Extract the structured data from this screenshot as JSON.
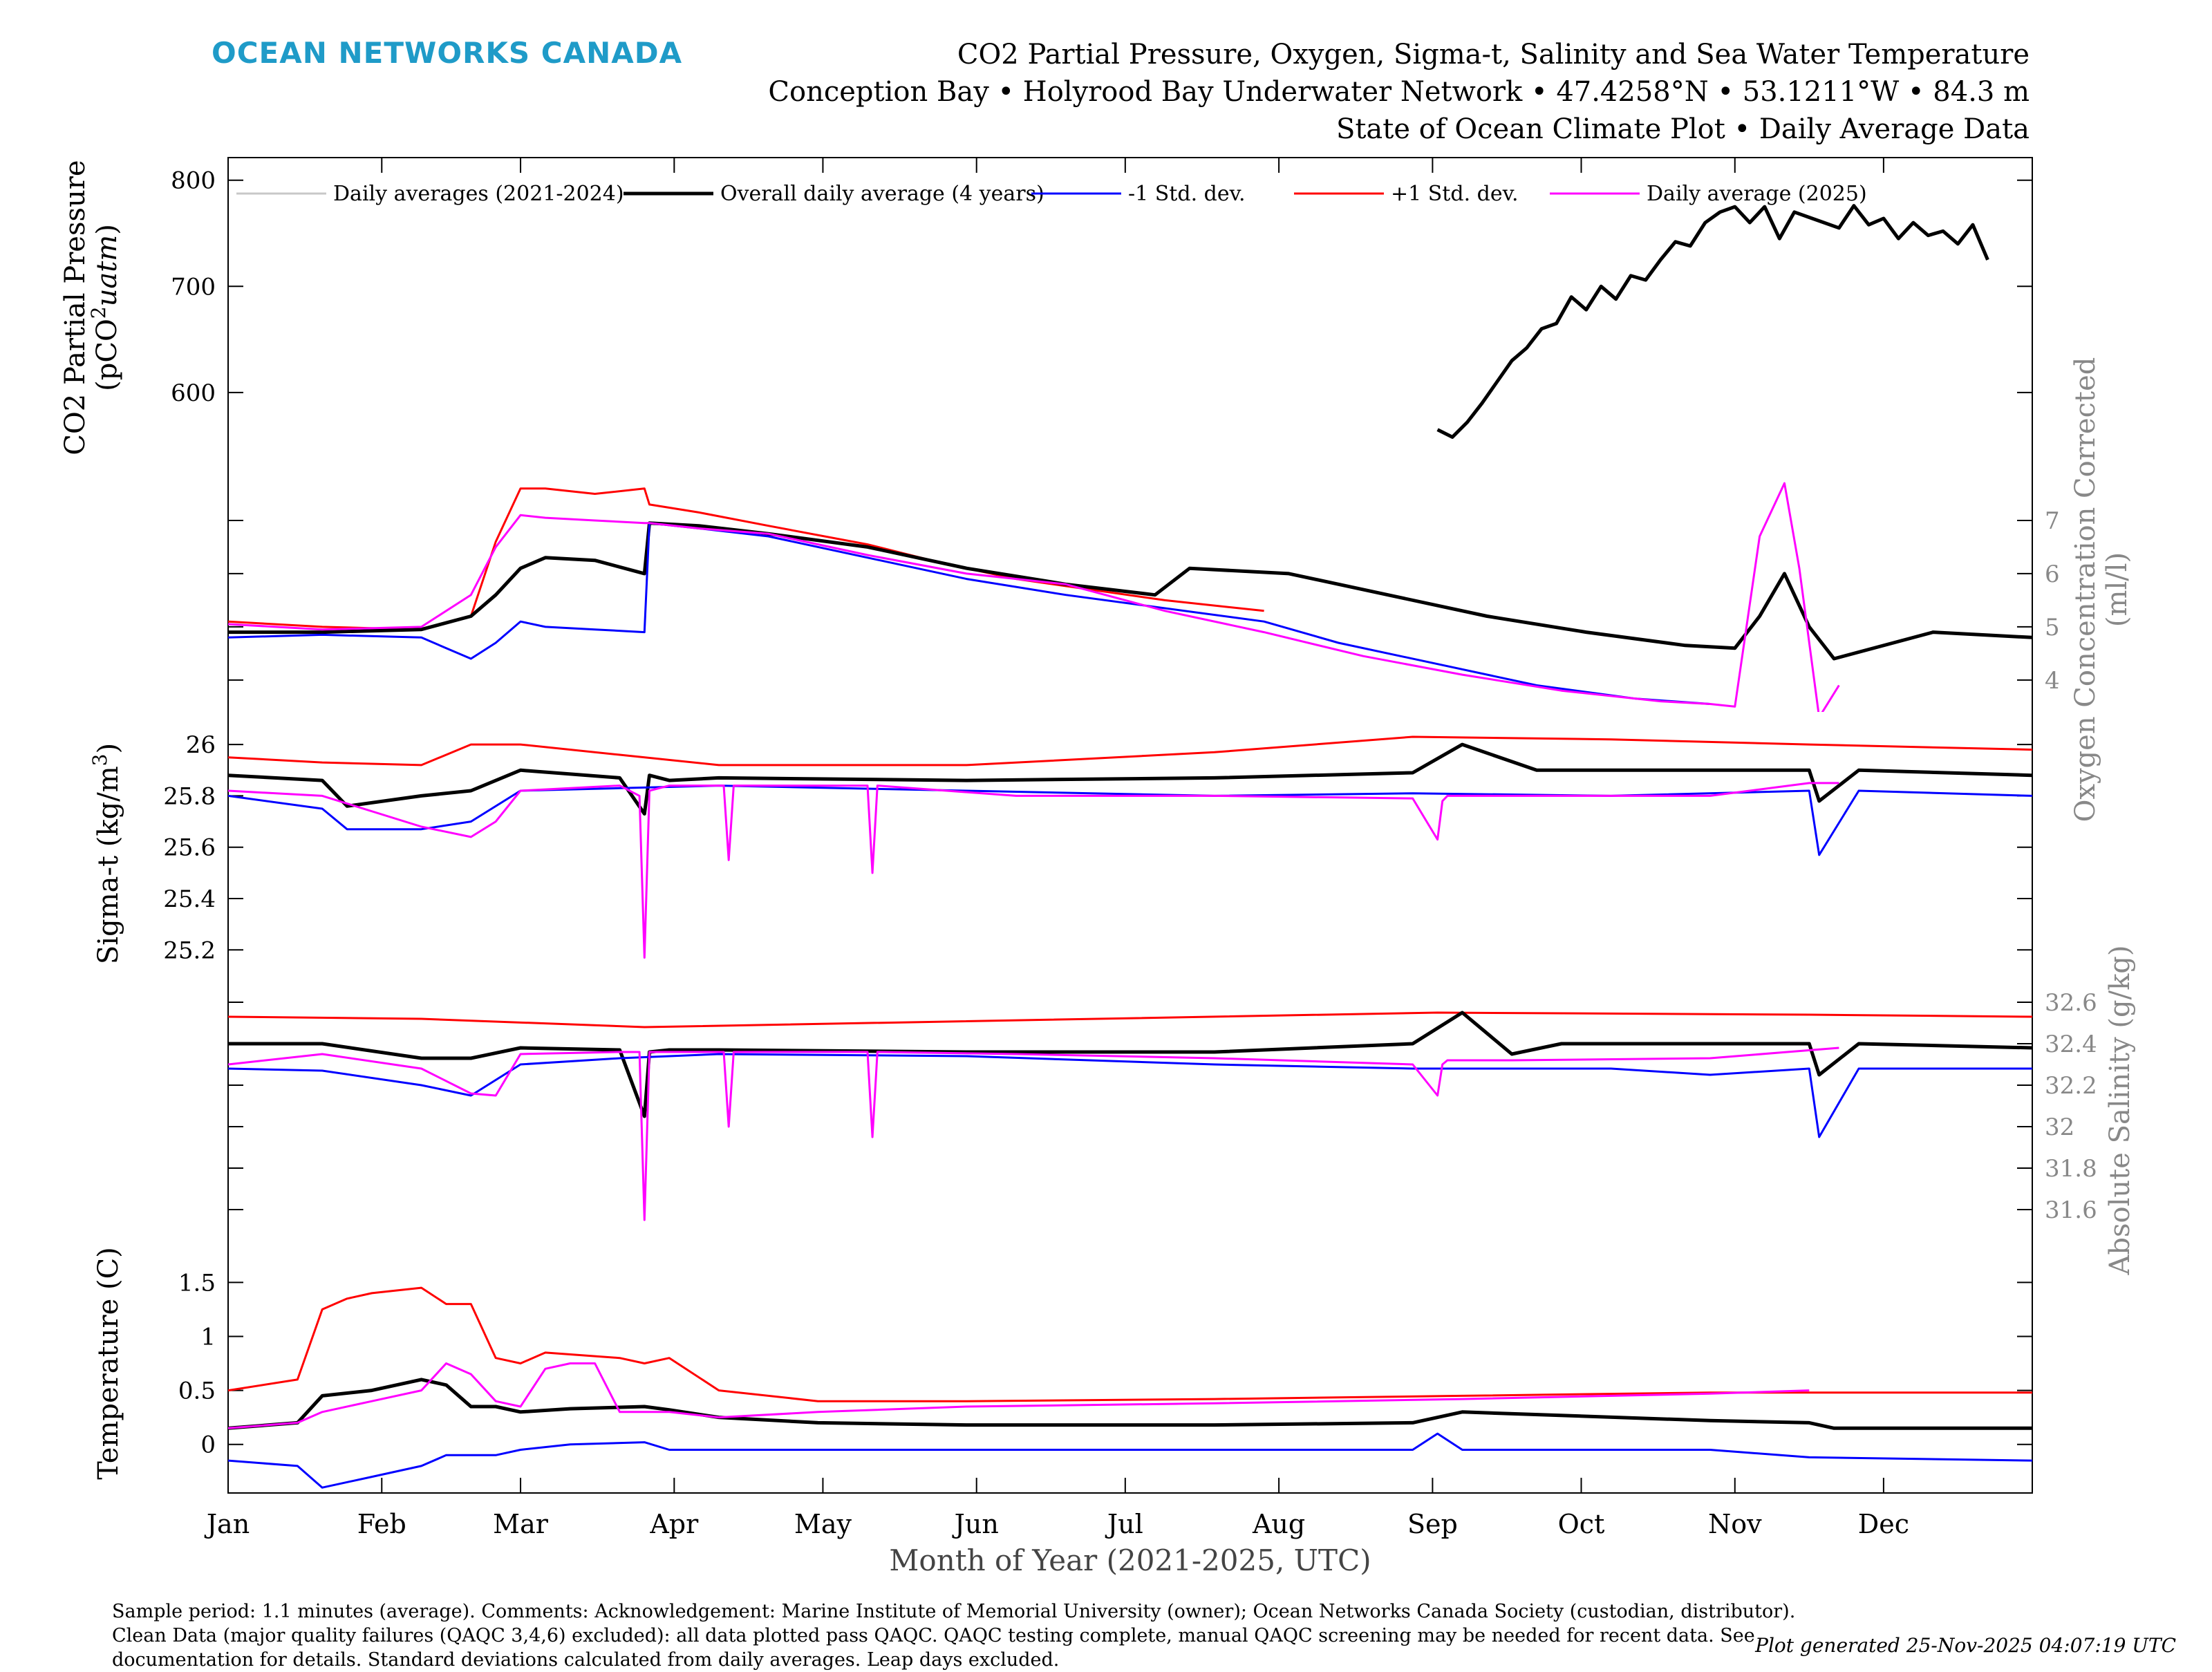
{
  "header": {
    "brand": "OCEAN NETWORKS CANADA",
    "title_line1": "CO2 Partial Pressure, Oxygen, Sigma-t, Salinity and Sea Water Temperature",
    "title_line2": "Conception Bay • Holyrood Bay Underwater Network • 47.4258°N • 53.1211°W • 84.3 m",
    "title_line3": "State of Ocean Climate Plot • Daily Average Data"
  },
  "footer": {
    "note": "Sample period: 1.1 minutes (average). Comments: Acknowledgement: Marine Institute of Memorial University (owner); Ocean Networks Canada Society (custodian, distributor). Clean Data (major quality failures (QAQC 3,4,6) excluded): all data plotted pass QAQC. QAQC testing complete, manual QAQC screening may be needed for recent data. See documentation for details. Standard deviations calculated from daily averages. Leap days excluded.",
    "generated": "Plot generated 25-Nov-2025 04:07:19 UTC"
  },
  "legend": [
    {
      "label": "Daily averages (2021-2024)",
      "color": "#c8c8c8"
    },
    {
      "label": "Overall daily average (4 years)",
      "color": "#000000"
    },
    {
      "label": "-1 Std. dev.",
      "color": "#0000ff"
    },
    {
      "label": "+1 Std. dev.",
      "color": "#ff0000"
    },
    {
      "label": "Daily average (2025)",
      "color": "#ff00ff"
    }
  ],
  "xaxis": {
    "label": "Month of Year (2021-2025, UTC)",
    "months": [
      "Jan",
      "Feb",
      "Mar",
      "Apr",
      "May",
      "Jun",
      "Jul",
      "Aug",
      "Sep",
      "Oct",
      "Nov",
      "Dec"
    ],
    "month_start_days": [
      1,
      32,
      60,
      91,
      121,
      152,
      182,
      213,
      244,
      274,
      305,
      335
    ]
  },
  "chart_data": [
    {
      "type": "line",
      "panel": "CO2 partial pressure",
      "ylabel_line1": "CO2 Partial Pressure",
      "ylabel_line2": "(pCO",
      "ylabel_sup": "2",
      "ylabel_unit": "uatm",
      "yticks": [
        600,
        700,
        800
      ],
      "ylim": [
        540,
        820
      ],
      "series": [
        {
          "name": "Overall daily average (4 years)",
          "color": "#000000",
          "x": [
            245,
            248,
            251,
            254,
            257,
            260,
            263,
            266,
            269,
            272,
            275,
            278,
            281,
            284,
            287,
            290,
            293,
            296,
            299,
            302,
            305,
            308,
            311,
            314,
            317,
            320,
            323,
            326,
            329,
            332,
            335,
            338,
            341,
            344,
            347,
            350,
            353,
            356
          ],
          "y": [
            565,
            558,
            572,
            590,
            610,
            630,
            642,
            660,
            665,
            690,
            678,
            700,
            688,
            710,
            706,
            725,
            742,
            738,
            760,
            770,
            775,
            760,
            775,
            745,
            770,
            765,
            760,
            755,
            776,
            758,
            764,
            745,
            760,
            748,
            752,
            740,
            758,
            725
          ]
        }
      ]
    },
    {
      "type": "line",
      "panel": "Oxygen",
      "ylabel_line1": "Oxygen Concentration Corrected",
      "ylabel_line2": "(ml/l)",
      "yticks": [
        4,
        5,
        6,
        7
      ],
      "ylim": [
        3.4,
        8.0
      ],
      "series": [
        {
          "name": "+1 Std. dev.",
          "color": "#ff0000",
          "x": [
            1,
            20,
            40,
            50,
            55,
            60,
            65,
            75,
            85,
            86,
            96,
            110,
            130,
            145,
            160,
            175,
            190,
            210
          ],
          "y": [
            5.1,
            5.0,
            4.95,
            5.2,
            6.6,
            7.6,
            7.6,
            7.5,
            7.6,
            7.3,
            7.15,
            6.9,
            6.55,
            6.2,
            5.9,
            5.7,
            5.5,
            5.3
          ]
        },
        {
          "name": "Overall daily average (4 years)",
          "color": "#000000",
          "x": [
            1,
            20,
            40,
            50,
            55,
            60,
            65,
            75,
            85,
            86,
            96,
            110,
            130,
            150,
            170,
            188,
            195,
            215,
            235,
            255,
            275,
            295,
            305,
            310,
            315,
            320,
            325,
            345,
            365
          ],
          "y": [
            4.9,
            4.9,
            4.95,
            5.2,
            5.6,
            6.1,
            6.3,
            6.25,
            6.0,
            6.95,
            6.9,
            6.75,
            6.5,
            6.1,
            5.8,
            5.6,
            6.1,
            6.0,
            5.6,
            5.2,
            4.9,
            4.65,
            4.6,
            5.2,
            6.0,
            5.0,
            4.4,
            4.9,
            4.8
          ]
        },
        {
          "name": "-1 Std. dev.",
          "color": "#0000ff",
          "x": [
            1,
            20,
            40,
            45,
            50,
            55,
            60,
            65,
            75,
            85,
            86,
            96,
            110,
            130,
            150,
            170,
            210,
            225,
            245,
            265,
            285,
            300
          ],
          "y": [
            4.8,
            4.85,
            4.8,
            4.6,
            4.4,
            4.7,
            5.1,
            5.0,
            4.95,
            4.9,
            6.95,
            6.85,
            6.7,
            6.3,
            5.9,
            5.6,
            5.1,
            4.7,
            4.3,
            3.9,
            3.65,
            3.55
          ]
        },
        {
          "name": "Daily average (2025)",
          "color": "#ff00ff",
          "x": [
            1,
            20,
            40,
            50,
            55,
            60,
            65,
            75,
            85,
            86,
            96,
            110,
            130,
            150,
            170,
            190,
            210,
            230,
            250,
            270,
            290,
            300,
            305,
            310,
            315,
            318,
            322,
            326
          ],
          "y": [
            5.05,
            4.95,
            5.0,
            5.6,
            6.5,
            7.1,
            7.05,
            7.0,
            6.95,
            6.95,
            6.85,
            6.75,
            6.35,
            6.0,
            5.8,
            5.3,
            4.9,
            4.45,
            4.1,
            3.8,
            3.6,
            3.55,
            3.5,
            6.7,
            7.7,
            6.1,
            3.3,
            3.9
          ]
        }
      ]
    },
    {
      "type": "line",
      "panel": "Sigma-t",
      "ylabel_main": "Sigma-t (kg/m",
      "ylabel_sup": "3",
      "yticks": [
        25.2,
        25.4,
        25.6,
        25.8,
        26
      ],
      "ylim": [
        25.05,
        26.1
      ],
      "series": [
        {
          "name": "+1 Std. dev.",
          "color": "#ff0000",
          "x": [
            1,
            20,
            40,
            50,
            60,
            80,
            100,
            150,
            200,
            240,
            280,
            320,
            365
          ],
          "y": [
            25.95,
            25.93,
            25.92,
            26.0,
            26.0,
            25.96,
            25.92,
            25.92,
            25.97,
            26.03,
            26.02,
            26.0,
            25.98
          ]
        },
        {
          "name": "Overall daily average (4 years)",
          "color": "#000000",
          "x": [
            1,
            20,
            25,
            40,
            50,
            60,
            80,
            85,
            86,
            90,
            100,
            150,
            200,
            240,
            250,
            265,
            300,
            320,
            322,
            330,
            365
          ],
          "y": [
            25.88,
            25.86,
            25.76,
            25.8,
            25.82,
            25.9,
            25.87,
            25.73,
            25.88,
            25.86,
            25.87,
            25.86,
            25.87,
            25.89,
            26.0,
            25.9,
            25.9,
            25.9,
            25.78,
            25.9,
            25.88
          ]
        },
        {
          "name": "-1 Std. dev.",
          "color": "#0000ff",
          "x": [
            1,
            20,
            25,
            40,
            50,
            60,
            80,
            100,
            150,
            200,
            240,
            280,
            320,
            322,
            330,
            365
          ],
          "y": [
            25.8,
            25.75,
            25.67,
            25.67,
            25.7,
            25.82,
            25.83,
            25.84,
            25.82,
            25.8,
            25.81,
            25.8,
            25.82,
            25.57,
            25.82,
            25.8
          ]
        },
        {
          "name": "Daily average (2025)",
          "color": "#ff00ff",
          "x": [
            1,
            20,
            40,
            50,
            55,
            60,
            80,
            84,
            85,
            86,
            90,
            101,
            102,
            103,
            130,
            131,
            132,
            160,
            200,
            240,
            245,
            246,
            247,
            260,
            300,
            320,
            326
          ],
          "y": [
            25.82,
            25.8,
            25.68,
            25.64,
            25.7,
            25.82,
            25.84,
            25.8,
            25.17,
            25.82,
            25.84,
            25.84,
            25.55,
            25.84,
            25.84,
            25.5,
            25.84,
            25.8,
            25.8,
            25.79,
            25.63,
            25.78,
            25.8,
            25.8,
            25.8,
            25.85,
            25.85
          ]
        }
      ]
    },
    {
      "type": "line",
      "panel": "Absolute salinity",
      "ylabel_main": "Absolute Salinity (g/kg)",
      "yticks": [
        31.6,
        31.8,
        32,
        32.2,
        32.4,
        32.6
      ],
      "ylim": [
        31.5,
        32.66
      ],
      "series": [
        {
          "name": "+1 Std. dev.",
          "color": "#ff0000",
          "x": [
            1,
            40,
            85,
            245,
            320,
            365
          ],
          "y": [
            32.53,
            32.52,
            32.48,
            32.55,
            32.54,
            32.53
          ]
        },
        {
          "name": "Overall daily average (4 years)",
          "color": "#000000",
          "x": [
            1,
            20,
            40,
            50,
            60,
            80,
            85,
            86,
            90,
            100,
            150,
            200,
            240,
            250,
            260,
            270,
            320,
            322,
            330,
            365
          ],
          "y": [
            32.4,
            32.4,
            32.33,
            32.33,
            32.38,
            32.37,
            32.05,
            32.36,
            32.37,
            32.37,
            32.36,
            32.36,
            32.4,
            32.55,
            32.35,
            32.4,
            32.4,
            32.25,
            32.4,
            32.38
          ]
        },
        {
          "name": "-1 Std. dev.",
          "color": "#0000ff",
          "x": [
            1,
            20,
            40,
            50,
            60,
            80,
            100,
            150,
            200,
            240,
            280,
            300,
            320,
            322,
            330,
            365
          ],
          "y": [
            32.28,
            32.27,
            32.2,
            32.15,
            32.3,
            32.33,
            32.35,
            32.34,
            32.3,
            32.28,
            32.28,
            32.25,
            32.28,
            31.95,
            32.28,
            32.28
          ]
        },
        {
          "name": "Daily average (2025)",
          "color": "#ff00ff",
          "x": [
            1,
            20,
            40,
            50,
            55,
            60,
            80,
            84,
            85,
            86,
            90,
            101,
            102,
            103,
            130,
            131,
            132,
            160,
            200,
            240,
            245,
            246,
            247,
            260,
            300,
            326
          ],
          "y": [
            32.3,
            32.35,
            32.28,
            32.16,
            32.15,
            32.35,
            32.36,
            32.36,
            31.55,
            32.36,
            32.36,
            32.36,
            32.0,
            32.36,
            32.36,
            31.95,
            32.36,
            32.35,
            32.33,
            32.3,
            32.15,
            32.3,
            32.32,
            32.32,
            32.33,
            32.38
          ]
        }
      ]
    },
    {
      "type": "line",
      "panel": "Temperature",
      "ylabel_main": "Temperature (C)",
      "yticks": [
        0,
        0.5,
        1,
        1.5
      ],
      "ylim": [
        -0.45,
        1.95
      ],
      "series": [
        {
          "name": "+1 Std. dev.",
          "color": "#ff0000",
          "x": [
            1,
            15,
            20,
            25,
            30,
            40,
            45,
            50,
            55,
            60,
            65,
            80,
            85,
            90,
            100,
            120,
            150,
            200,
            250,
            300,
            320,
            365
          ],
          "y": [
            0.5,
            0.6,
            1.25,
            1.35,
            1.4,
            1.45,
            1.3,
            1.3,
            0.8,
            0.75,
            0.85,
            0.8,
            0.75,
            0.8,
            0.5,
            0.4,
            0.4,
            0.42,
            0.45,
            0.48,
            0.48,
            0.48
          ]
        },
        {
          "name": "Overall daily average (4 years)",
          "color": "#000000",
          "x": [
            1,
            15,
            20,
            30,
            40,
            45,
            50,
            55,
            60,
            70,
            85,
            90,
            100,
            120,
            150,
            200,
            240,
            250,
            300,
            320,
            325,
            365
          ],
          "y": [
            0.15,
            0.2,
            0.45,
            0.5,
            0.6,
            0.55,
            0.35,
            0.35,
            0.3,
            0.33,
            0.35,
            0.32,
            0.25,
            0.2,
            0.18,
            0.18,
            0.2,
            0.3,
            0.22,
            0.2,
            0.15,
            0.15
          ]
        },
        {
          "name": "-1 Std. dev.",
          "color": "#0000ff",
          "x": [
            1,
            15,
            20,
            30,
            40,
            45,
            50,
            55,
            60,
            70,
            85,
            90,
            100,
            120,
            150,
            200,
            240,
            245,
            250,
            300,
            320,
            365
          ],
          "y": [
            -0.15,
            -0.2,
            -0.4,
            -0.3,
            -0.2,
            -0.1,
            -0.1,
            -0.1,
            -0.05,
            0.0,
            0.02,
            -0.05,
            -0.05,
            -0.05,
            -0.05,
            -0.05,
            -0.05,
            0.1,
            -0.05,
            -0.05,
            -0.12,
            -0.15
          ]
        },
        {
          "name": "Daily average (2025)",
          "color": "#ff00ff",
          "x": [
            1,
            15,
            20,
            30,
            40,
            45,
            50,
            55,
            60,
            65,
            70,
            75,
            80,
            85,
            90,
            100,
            120,
            150,
            200,
            250,
            300,
            320
          ],
          "y": [
            0.15,
            0.2,
            0.3,
            0.4,
            0.5,
            0.75,
            0.65,
            0.4,
            0.35,
            0.7,
            0.75,
            0.75,
            0.3,
            0.3,
            0.3,
            0.25,
            0.3,
            0.35,
            0.38,
            0.42,
            0.47,
            0.5
          ]
        }
      ]
    }
  ]
}
